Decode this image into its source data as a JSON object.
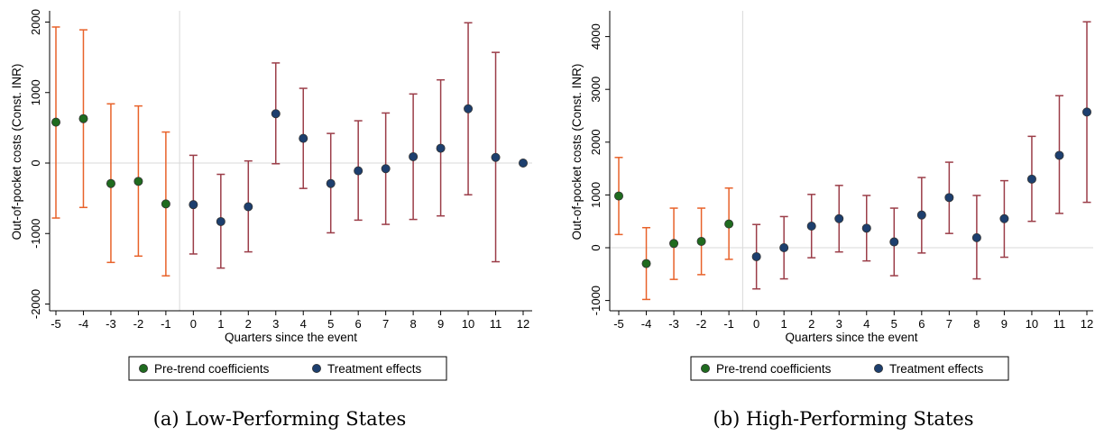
{
  "colors": {
    "pre_bar": "#e8622a",
    "post_bar": "#9b3d48",
    "pre_dot": "#1f6b1f",
    "post_dot": "#1d3f6e",
    "zero_line": "#d9d9d9",
    "event_line": "#d9d9d9"
  },
  "chart_data": [
    {
      "type": "scatter",
      "caption": "(a) Low-Performing States",
      "xlabel": "Quarters since the event",
      "ylabel": "Out-of-pocket costs (Const. INR)",
      "xlim": [
        -5,
        12
      ],
      "ylim": [
        -2000,
        2000
      ],
      "xticks": [
        "-5",
        "-4",
        "-3",
        "-2",
        "-1",
        "0",
        "1",
        "2",
        "3",
        "4",
        "5",
        "6",
        "7",
        "8",
        "9",
        "10",
        "11",
        "12"
      ],
      "yticks": [
        "-2000",
        "-1000",
        "0",
        "1000",
        "2000"
      ],
      "grid": false,
      "legend": "bottom",
      "event_line_x": -0.5,
      "series": [
        {
          "name": "Pre-trend coefficients",
          "x": [
            -5,
            -4,
            -3,
            -2,
            -1
          ],
          "y": [
            580,
            630,
            -290,
            -260,
            -580
          ],
          "lo": [
            -780,
            -630,
            -1410,
            -1320,
            -1600
          ],
          "hi": [
            1930,
            1890,
            840,
            810,
            440
          ]
        },
        {
          "name": "Treatment effects",
          "x": [
            0,
            1,
            2,
            3,
            4,
            5,
            6,
            7,
            8,
            9,
            10,
            11,
            12
          ],
          "y": [
            -590,
            -830,
            -620,
            700,
            350,
            -290,
            -110,
            -80,
            90,
            210,
            770,
            80,
            0
          ],
          "lo": [
            -1290,
            -1490,
            -1260,
            -10,
            -360,
            -990,
            -810,
            -870,
            -800,
            -750,
            -450,
            -1400,
            0
          ],
          "hi": [
            110,
            -160,
            30,
            1420,
            1060,
            420,
            600,
            710,
            980,
            1180,
            1990,
            1570,
            0
          ]
        }
      ]
    },
    {
      "type": "scatter",
      "caption": "(b) High-Performing States",
      "xlabel": "Quarters since the event",
      "ylabel": "Out-of-pocket costs (Const. INR)",
      "xlim": [
        -5,
        12
      ],
      "ylim": [
        -1000,
        4000
      ],
      "xticks": [
        "-5",
        "-4",
        "-3",
        "-2",
        "-1",
        "0",
        "1",
        "2",
        "3",
        "4",
        "5",
        "6",
        "7",
        "8",
        "9",
        "10",
        "11",
        "12"
      ],
      "yticks": [
        "-1000",
        "0",
        "1000",
        "2000",
        "3000",
        "4000"
      ],
      "grid": false,
      "legend": "bottom",
      "event_line_x": -0.5,
      "series": [
        {
          "name": "Pre-trend coefficients",
          "x": [
            -5,
            -4,
            -3,
            -2,
            -1
          ],
          "y": [
            980,
            -300,
            80,
            120,
            450
          ],
          "lo": [
            250,
            -980,
            -600,
            -510,
            -220
          ],
          "hi": [
            1710,
            380,
            750,
            750,
            1130
          ]
        },
        {
          "name": "Treatment effects",
          "x": [
            0,
            1,
            2,
            3,
            4,
            5,
            6,
            7,
            8,
            9,
            10,
            11,
            12
          ],
          "y": [
            -170,
            0,
            410,
            550,
            370,
            110,
            620,
            950,
            190,
            550,
            1300,
            1750,
            2570
          ],
          "lo": [
            -780,
            -590,
            -190,
            -80,
            -250,
            -530,
            -100,
            270,
            -590,
            -180,
            500,
            650,
            860
          ],
          "hi": [
            440,
            590,
            1010,
            1180,
            990,
            750,
            1330,
            1620,
            990,
            1270,
            2110,
            2880,
            4280
          ]
        }
      ]
    }
  ]
}
